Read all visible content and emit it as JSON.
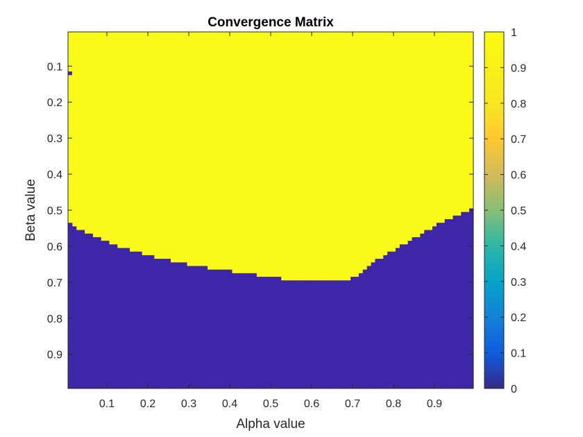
{
  "chart_data": {
    "type": "heatmap",
    "title": "Convergence Matrix",
    "xlabel": "Alpha value",
    "ylabel": "Beta value",
    "xlim": [
      0.005,
      0.995
    ],
    "ylim": [
      0.005,
      0.995
    ],
    "y_direction": "reversed",
    "grid": false,
    "x_ticks": [
      0.1,
      0.2,
      0.3,
      0.4,
      0.5,
      0.6,
      0.7,
      0.8,
      0.9
    ],
    "x_tick_labels": [
      "0.1",
      "0.2",
      "0.3",
      "0.4",
      "0.5",
      "0.6",
      "0.7",
      "0.8",
      "0.9"
    ],
    "y_ticks": [
      0.1,
      0.2,
      0.3,
      0.4,
      0.5,
      0.6,
      0.7,
      0.8,
      0.9
    ],
    "y_tick_labels": [
      "0.1",
      "0.2",
      "0.3",
      "0.4",
      "0.5",
      "0.6",
      "0.7",
      "0.8",
      "0.9"
    ],
    "alpha_step": 0.01,
    "beta_step": 0.01,
    "values_description": "1 = converged (yellow), 0 = not converged (blue)",
    "boundary": {
      "alpha": [
        0.01,
        0.03,
        0.05,
        0.07,
        0.09,
        0.11,
        0.14,
        0.17,
        0.2,
        0.24,
        0.28,
        0.32,
        0.38,
        0.44,
        0.5,
        0.56,
        0.62,
        0.68,
        0.71,
        0.73,
        0.75,
        0.78,
        0.81,
        0.84,
        0.87,
        0.9,
        0.93,
        0.96,
        0.99
      ],
      "beta": [
        0.54,
        0.56,
        0.57,
        0.58,
        0.59,
        0.6,
        0.61,
        0.62,
        0.63,
        0.64,
        0.65,
        0.66,
        0.67,
        0.68,
        0.69,
        0.7,
        0.7,
        0.7,
        0.69,
        0.67,
        0.65,
        0.63,
        0.61,
        0.59,
        0.57,
        0.55,
        0.53,
        0.52,
        0.5
      ]
    },
    "outliers": [
      {
        "alpha": 0.01,
        "beta": 0.12,
        "value": 0
      }
    ],
    "colorbar": {
      "min": 0,
      "max": 1,
      "ticks": [
        0,
        0.1,
        0.2,
        0.3,
        0.4,
        0.5,
        0.6,
        0.7,
        0.8,
        0.9,
        1
      ],
      "tick_labels": [
        "0",
        "0.1",
        "0.2",
        "0.3",
        "0.4",
        "0.5",
        "0.6",
        "0.7",
        "0.8",
        "0.9",
        "1"
      ],
      "colormap": "parula",
      "low_color": "#3d26a8",
      "high_color": "#f9f91a"
    }
  }
}
